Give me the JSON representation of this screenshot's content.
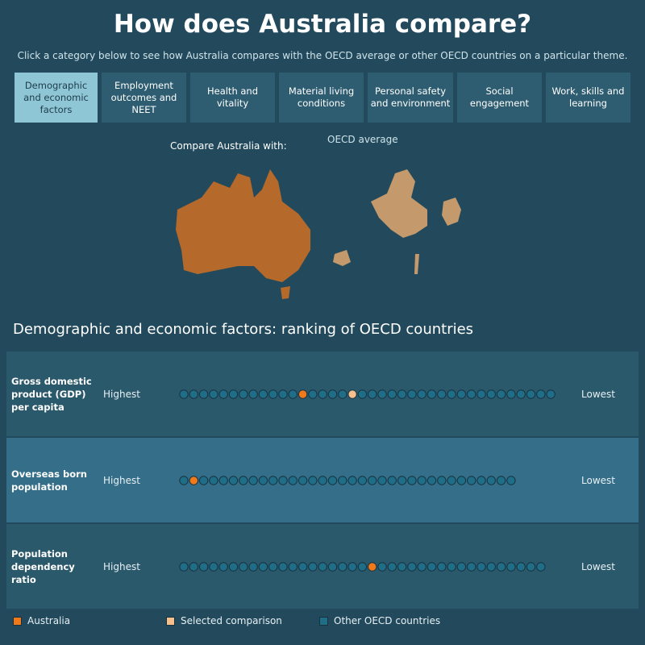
{
  "header": {
    "title": "How does Australia compare?",
    "subtitle": "Click a category below to see how Australia compares with the OECD average or other OECD countries on a particular theme."
  },
  "tabs": [
    "Demographic and economic factors",
    "Employment outcomes and NEET",
    "Health and vitality",
    "Material living conditions",
    "Personal safety and environment",
    "Social engagement",
    "Work, skills and learning"
  ],
  "selected_tab": 0,
  "compare": {
    "label": "Compare Australia with:",
    "selection": "OECD average"
  },
  "section_title": "Demographic and economic factors: ranking of OECD countries",
  "rows": [
    {
      "label": "Gross domestic product (GDP) per capita",
      "high": "Highest",
      "low": "Lowest",
      "countries": 38,
      "australia_rank": 13,
      "comparison_rank": 18
    },
    {
      "label": "Overseas born population",
      "high": "Highest",
      "low": "Lowest",
      "countries": 34,
      "australia_rank": 2,
      "comparison_rank": null
    },
    {
      "label": "Population dependency ratio",
      "high": "Highest",
      "low": "Lowest",
      "countries": 37,
      "australia_rank": 20,
      "comparison_rank": null
    }
  ],
  "legend": [
    {
      "name": "Australia",
      "color": "#f07a1a"
    },
    {
      "name": "Selected comparison",
      "color": "#f6c08e"
    },
    {
      "name": "Other OECD countries",
      "color": "#1f6d86"
    }
  ]
}
